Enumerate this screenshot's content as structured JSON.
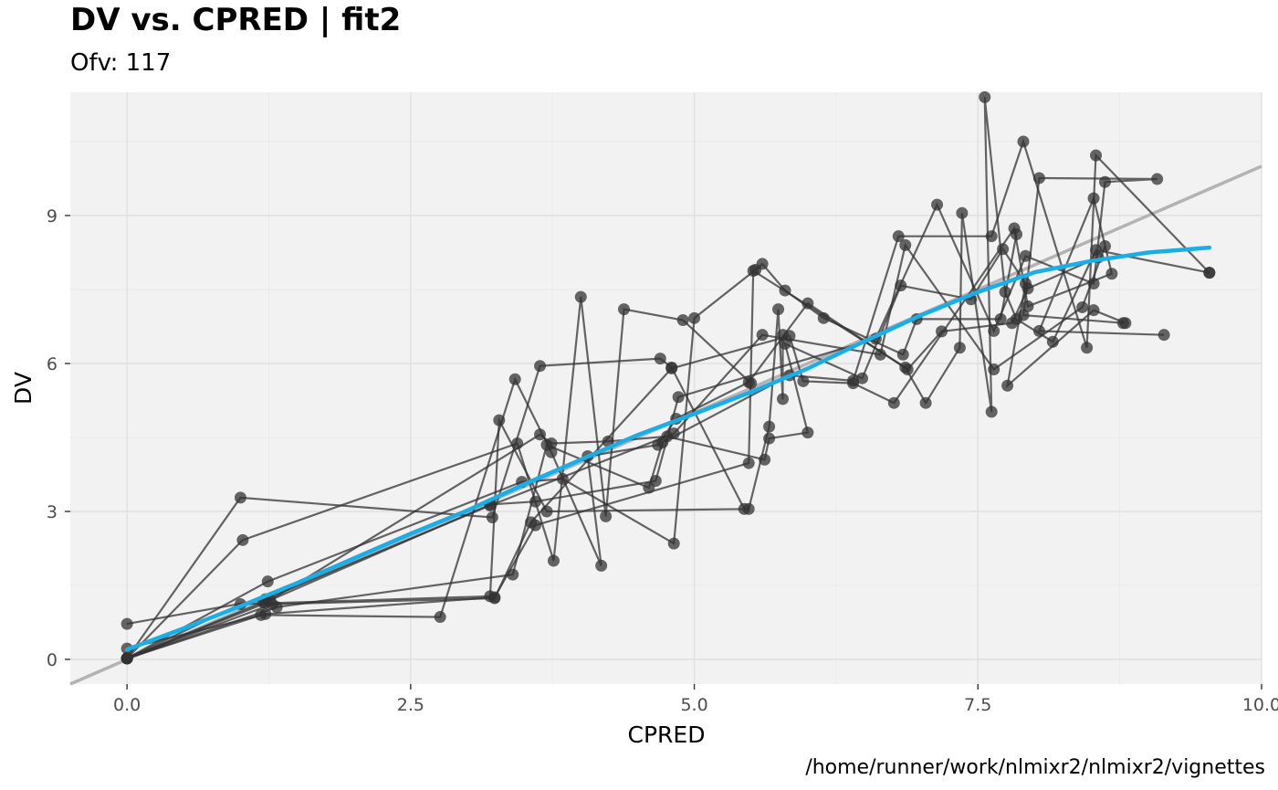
{
  "chart_data": {
    "type": "scatter",
    "title": "DV vs. CPRED | fit2",
    "subtitle": "Ofv: 117",
    "caption": "/home/runner/work/nlmixr2/nlmixr2/vignettes",
    "xlabel": "CPRED",
    "ylabel": "DV",
    "xlim": [
      -0.5,
      10.0
    ],
    "ylim": [
      -0.5,
      11.5
    ],
    "x_ticks": [
      0.0,
      2.5,
      5.0,
      7.5,
      10.0
    ],
    "x_tick_labels": [
      "0.0",
      "2.5",
      "5.0",
      "7.5",
      "10.0"
    ],
    "y_ticks": [
      0,
      3,
      6,
      9
    ],
    "y_tick_labels": [
      "0",
      "3",
      "6",
      "9"
    ],
    "grid": true,
    "colors": {
      "panel": "#f2f2f2",
      "grid": "#e0e0e0",
      "points": "#333333",
      "identity_line": "#b3b3b3",
      "smooth_line": "#1aaee8"
    },
    "subjects": [
      [
        [
          0,
          0.02
        ],
        [
          1.0,
          3.28
        ],
        [
          3.22,
          2.88
        ],
        [
          3.64,
          5.95
        ],
        [
          4.7,
          6.1
        ],
        [
          4.8,
          5.92
        ],
        [
          5.44,
          3.05
        ]
      ],
      [
        [
          0,
          0.02
        ],
        [
          1.02,
          2.42
        ],
        [
          3.44,
          4.38
        ],
        [
          3.76,
          2.0
        ],
        [
          4.0,
          7.35
        ],
        [
          4.22,
          2.9
        ],
        [
          4.38,
          7.1
        ],
        [
          4.9,
          6.88
        ],
        [
          5.5,
          5.6
        ]
      ],
      [
        [
          0,
          0.02
        ],
        [
          1.18,
          0.9
        ],
        [
          2.76,
          0.86
        ],
        [
          3.42,
          5.68
        ],
        [
          3.74,
          4.2
        ],
        [
          4.18,
          1.9
        ],
        [
          4.06,
          4.12
        ],
        [
          4.68,
          4.35
        ],
        [
          4.84,
          4.88
        ],
        [
          5.48,
          5.62
        ],
        [
          6.0,
          7.22
        ],
        [
          6.88,
          5.88
        ],
        [
          7.18,
          6.65
        ],
        [
          7.8,
          6.82
        ],
        [
          7.94,
          7.52
        ],
        [
          8.56,
          8.15
        ]
      ],
      [
        [
          0,
          0.02
        ],
        [
          1.0,
          1.12
        ],
        [
          3.2,
          1.28
        ],
        [
          3.28,
          4.85
        ],
        [
          3.7,
          3.0
        ],
        [
          5.48,
          3.05
        ],
        [
          5.66,
          4.72
        ],
        [
          5.74,
          7.1
        ],
        [
          5.78,
          5.28
        ],
        [
          5.78,
          6.58
        ]
      ],
      [
        [
          0,
          0.02
        ],
        [
          1.24,
          1.58
        ],
        [
          3.48,
          3.6
        ],
        [
          3.84,
          3.66
        ],
        [
          4.82,
          2.35
        ],
        [
          5.0,
          6.92
        ],
        [
          5.54,
          7.9
        ],
        [
          5.6,
          8.02
        ],
        [
          5.8,
          7.48
        ],
        [
          6.14,
          6.92
        ],
        [
          6.84,
          6.18
        ],
        [
          6.96,
          6.9
        ],
        [
          7.7,
          6.9
        ],
        [
          7.84,
          8.62
        ]
      ],
      [
        [
          0,
          0.02
        ],
        [
          1.2,
          1.16
        ],
        [
          1.26,
          1.2
        ],
        [
          3.2,
          3.14
        ],
        [
          3.6,
          3.2
        ],
        [
          4.66,
          3.62
        ],
        [
          4.86,
          5.32
        ],
        [
          6.6,
          6.5
        ],
        [
          7.14,
          9.22
        ],
        [
          7.64,
          6.66
        ],
        [
          7.92,
          8.18
        ],
        [
          8.52,
          7.62
        ],
        [
          8.62,
          9.68
        ],
        [
          9.08,
          9.74
        ],
        [
          8.04,
          9.76
        ],
        [
          7.9,
          6.98
        ],
        [
          8.78,
          6.82
        ]
      ],
      [
        [
          0,
          0.22
        ],
        [
          1.22,
          0.92
        ],
        [
          3.24,
          1.26
        ],
        [
          3.6,
          2.72
        ],
        [
          5.48,
          3.98
        ],
        [
          5.52,
          7.88
        ],
        [
          6.86,
          5.92
        ],
        [
          7.04,
          5.2
        ],
        [
          7.34,
          6.32
        ],
        [
          7.36,
          9.05
        ],
        [
          7.62,
          5.02
        ],
        [
          7.56,
          11.4
        ],
        [
          7.74,
          7.45
        ],
        [
          7.84,
          6.9
        ],
        [
          8.16,
          6.44
        ],
        [
          8.54,
          8.3
        ],
        [
          9.54,
          7.84
        ]
      ],
      [
        [
          0,
          0.02
        ],
        [
          1.32,
          1.06
        ],
        [
          3.4,
          1.72
        ],
        [
          3.7,
          4.35
        ],
        [
          4.6,
          3.48
        ],
        [
          4.72,
          4.4
        ],
        [
          5.84,
          5.76
        ],
        [
          6.4,
          5.65
        ],
        [
          6.8,
          8.58
        ],
        [
          7.62,
          8.58
        ],
        [
          7.9,
          10.5
        ],
        [
          8.46,
          6.32
        ],
        [
          8.54,
          10.22
        ],
        [
          9.54,
          7.84
        ]
      ],
      [
        [
          0,
          0.02
        ],
        [
          1.28,
          1.12
        ],
        [
          3.24,
          1.24
        ],
        [
          3.56,
          2.78
        ],
        [
          4.8,
          5.9
        ],
        [
          5.84,
          6.56
        ],
        [
          5.96,
          5.64
        ],
        [
          6.4,
          5.6
        ],
        [
          6.76,
          5.2
        ],
        [
          7.82,
          8.74
        ],
        [
          7.94,
          7.16
        ],
        [
          8.68,
          7.82
        ],
        [
          8.52,
          9.35
        ],
        [
          8.04,
          6.66
        ],
        [
          9.14,
          6.58
        ]
      ],
      [
        [
          0,
          0.02
        ],
        [
          1.22,
          1.14
        ],
        [
          3.64,
          4.56
        ],
        [
          3.74,
          4.38
        ],
        [
          4.24,
          4.42
        ],
        [
          4.76,
          4.52
        ],
        [
          5.62,
          4.05
        ],
        [
          5.66,
          4.48
        ],
        [
          6.0,
          4.6
        ],
        [
          5.8,
          6.4
        ],
        [
          6.48,
          5.7
        ],
        [
          6.82,
          7.58
        ],
        [
          7.44,
          7.3
        ],
        [
          7.72,
          8.32
        ],
        [
          7.92,
          7.62
        ],
        [
          7.76,
          5.55
        ],
        [
          8.52,
          7.08
        ],
        [
          8.8,
          6.82
        ]
      ],
      [
        [
          0,
          0.72
        ],
        [
          1.22,
          1.22
        ],
        [
          3.2,
          3.12
        ],
        [
          4.82,
          4.58
        ],
        [
          5.6,
          6.58
        ],
        [
          6.64,
          6.18
        ],
        [
          6.86,
          8.4
        ],
        [
          7.64,
          5.88
        ],
        [
          8.42,
          7.14
        ],
        [
          8.62,
          8.38
        ]
      ]
    ],
    "identity_line": {
      "slope": 1,
      "intercept": 0
    },
    "smooth_line": {
      "x": [
        0.0,
        0.5,
        1.0,
        1.5,
        2.0,
        2.5,
        3.0,
        3.5,
        4.0,
        4.5,
        5.0,
        5.5,
        6.0,
        6.5,
        7.0,
        7.5,
        8.0,
        8.5,
        9.0,
        9.54
      ],
      "y": [
        0.2,
        0.63,
        1.08,
        1.55,
        2.05,
        2.55,
        3.02,
        3.55,
        4.05,
        4.55,
        4.98,
        5.42,
        5.9,
        6.45,
        6.98,
        7.45,
        7.85,
        8.08,
        8.25,
        8.35
      ]
    }
  }
}
